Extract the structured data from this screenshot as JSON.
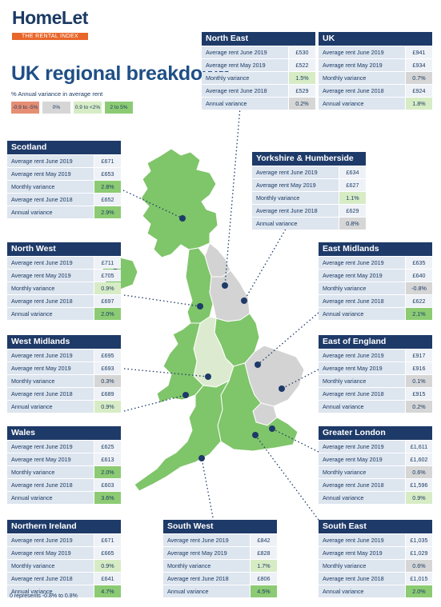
{
  "logo": {
    "brand": "HomeLet",
    "tagline": "THE RENTAL INDEX"
  },
  "title": "UK regional breakdown",
  "legend": {
    "title": "% Annual variance in average rent",
    "items": [
      {
        "label": "-0.9 to -5%",
        "color": "#e58e73"
      },
      {
        "label": "0%",
        "color": "#d6d6d6"
      },
      {
        "label": "0.9 to <2%",
        "color": "#d7ecc5"
      },
      {
        "label": "2 to 5%",
        "color": "#8ccb73"
      }
    ]
  },
  "colors": {
    "header": "#1e3a68",
    "none": "#eef2f7",
    "neutral": "#d6d6d6",
    "light": "#d7ecc5",
    "green": "#8ccb73",
    "neg": "#e58e73",
    "map_green": "#7fc56a",
    "map_grey": "#d3d3d3",
    "map_light": "#dcebcf",
    "pin": "#1e3a68"
  },
  "row_labels": [
    "Average rent June 2019",
    "Average rent May 2019",
    "Monthly variance",
    "Average rent June 2018",
    "Annual variance"
  ],
  "regions": [
    {
      "name": "North East",
      "values": [
        "£530",
        "£522",
        "1.5%",
        "£529",
        "0.2%"
      ],
      "shades": [
        "none",
        "none",
        "light",
        "none",
        "neutral"
      ]
    },
    {
      "name": "UK",
      "values": [
        "£941",
        "£934",
        "0.7%",
        "£924",
        "1.8%"
      ],
      "shades": [
        "none",
        "none",
        "neutral",
        "none",
        "light"
      ]
    },
    {
      "name": "Scotland",
      "values": [
        "£671",
        "£653",
        "2.8%",
        "£652",
        "2.9%"
      ],
      "shades": [
        "none",
        "none",
        "green",
        "none",
        "green"
      ]
    },
    {
      "name": "Yorkshire & Humberside",
      "values": [
        "£634",
        "£627",
        "1.1%",
        "£629",
        "0.8%"
      ],
      "shades": [
        "none",
        "none",
        "light",
        "none",
        "neutral"
      ]
    },
    {
      "name": "North West",
      "values": [
        "£711",
        "£705",
        "0.9%",
        "£697",
        "2.0%"
      ],
      "shades": [
        "none",
        "none",
        "light",
        "none",
        "green"
      ]
    },
    {
      "name": "East Midlands",
      "values": [
        "£635",
        "£640",
        "-0.8%",
        "£622",
        "2.1%"
      ],
      "shades": [
        "none",
        "none",
        "neutral",
        "none",
        "green"
      ]
    },
    {
      "name": "West Midlands",
      "values": [
        "£695",
        "£693",
        "0.3%",
        "£689",
        "0.9%"
      ],
      "shades": [
        "none",
        "none",
        "neutral",
        "none",
        "light"
      ]
    },
    {
      "name": "East of England",
      "values": [
        "£917",
        "£916",
        "0.1%",
        "£915",
        "0.2%"
      ],
      "shades": [
        "none",
        "none",
        "neutral",
        "none",
        "neutral"
      ]
    },
    {
      "name": "Wales",
      "values": [
        "£625",
        "£613",
        "2.0%",
        "£603",
        "3.6%"
      ],
      "shades": [
        "none",
        "none",
        "green",
        "none",
        "green"
      ]
    },
    {
      "name": "Greater London",
      "values": [
        "£1,611",
        "£1,602",
        "0.6%",
        "£1,596",
        "0.9%"
      ],
      "shades": [
        "none",
        "none",
        "neutral",
        "none",
        "light"
      ]
    },
    {
      "name": "Northern Ireland",
      "values": [
        "£671",
        "£665",
        "0.9%",
        "£641",
        "4.7%"
      ],
      "shades": [
        "none",
        "none",
        "light",
        "none",
        "green"
      ]
    },
    {
      "name": "South West",
      "values": [
        "£842",
        "£828",
        "1.7%",
        "£806",
        "4.5%"
      ],
      "shades": [
        "none",
        "none",
        "light",
        "none",
        "green"
      ]
    },
    {
      "name": "South East",
      "values": [
        "£1,035",
        "£1,029",
        "0.6%",
        "£1,015",
        "2.0%"
      ],
      "shades": [
        "none",
        "none",
        "neutral",
        "none",
        "green"
      ]
    }
  ],
  "footnote": "0 represents -0.8% to 0.8%"
}
